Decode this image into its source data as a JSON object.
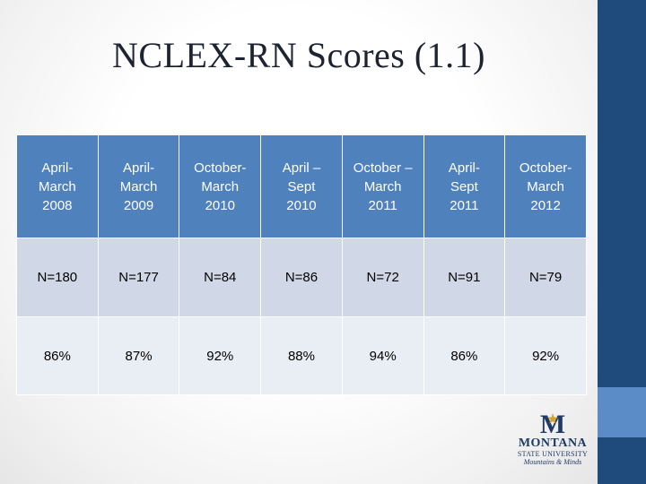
{
  "slide": {
    "title": "NCLEX-RN Scores (1.1)"
  },
  "table": {
    "headers": [
      [
        "April-",
        "March",
        "2008"
      ],
      [
        "April-",
        "March",
        "2009"
      ],
      [
        "October-",
        "March",
        "2010"
      ],
      [
        "April –",
        "Sept",
        "2010"
      ],
      [
        "October –",
        "March",
        "2011"
      ],
      [
        "April-",
        "Sept",
        "2011"
      ],
      [
        "October-",
        "March",
        "2012"
      ]
    ],
    "counts": [
      "N=180",
      "N=177",
      "N=84",
      "N=86",
      "N=72",
      "N=91",
      "N=79"
    ],
    "percents": [
      "86%",
      "87%",
      "92%",
      "88%",
      "94%",
      "86%",
      "92%"
    ]
  },
  "logo": {
    "letter": "M",
    "name": "MONTANA",
    "subname": "STATE UNIVERSITY",
    "tagline": "Mountains & Minds"
  },
  "colors": {
    "header_fill": "#4f81bd",
    "row1_fill": "#d0d8e8",
    "row2_fill": "#e9edf4",
    "side_bar": "#1f4a7c",
    "side_accent": "#5b8cc8"
  }
}
